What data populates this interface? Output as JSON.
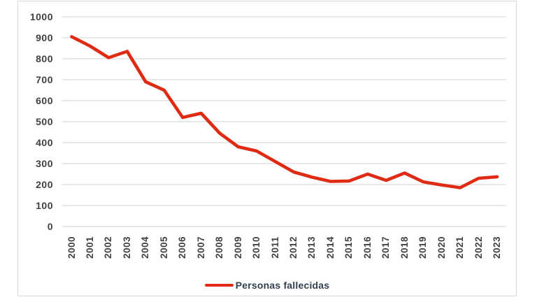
{
  "chart_data": {
    "type": "line",
    "title": "",
    "xlabel": "",
    "ylabel": "",
    "x": [
      "2000",
      "2001",
      "2002",
      "2003",
      "2004",
      "2005",
      "2006",
      "2007",
      "2008",
      "2009",
      "2010",
      "2011",
      "2012",
      "2013",
      "2014",
      "2015",
      "2016",
      "2017",
      "2018",
      "2019",
      "2020",
      "2021",
      "2022",
      "2023"
    ],
    "series": [
      {
        "name": "Personas fallecidas",
        "color": "#df2b14",
        "values": [
          905,
          860,
          805,
          835,
          690,
          650,
          520,
          540,
          445,
          380,
          360,
          310,
          260,
          235,
          215,
          217,
          250,
          220,
          255,
          213,
          198,
          185,
          230,
          237
        ]
      }
    ],
    "ylim": [
      0,
      1000
    ],
    "y_ticks": [
      0,
      100,
      200,
      300,
      400,
      500,
      600,
      700,
      800,
      900,
      1000
    ],
    "grid": true,
    "legend_position": "bottom"
  },
  "legend": {
    "label": "Personas fallecidas"
  },
  "colors": {
    "series_red": "#df2b14",
    "grid": "#d9d9d9",
    "frame_border": "#d7d7d7",
    "tick_text": "#404040",
    "legend_text": "#333f4f",
    "background": "#ffffff"
  }
}
